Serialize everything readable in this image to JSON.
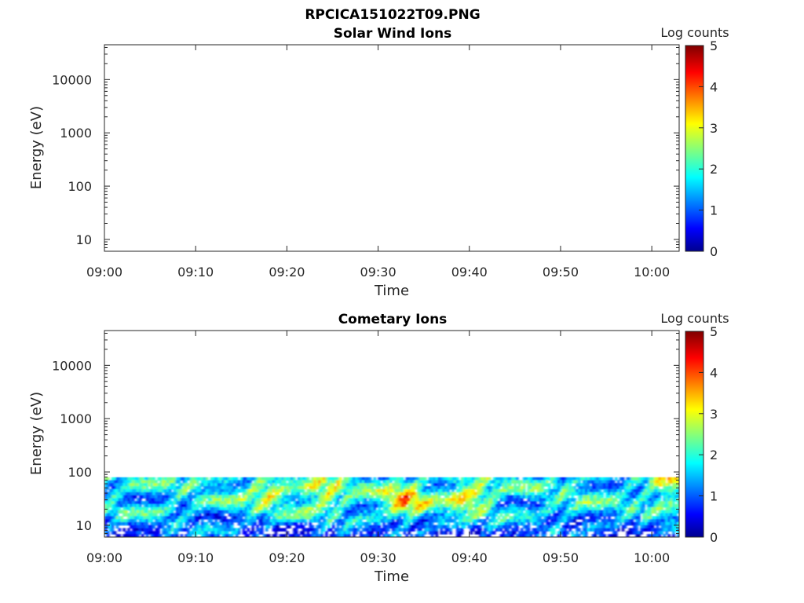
{
  "figure": {
    "title": "RPCICA151022T09.PNG"
  },
  "chart_data": [
    {
      "type": "heatmap",
      "title": "Solar Wind Ions",
      "xlabel": "Time",
      "ylabel": "Energy (eV)",
      "x_ticks": [
        "09:00",
        "09:10",
        "09:20",
        "09:30",
        "09:40",
        "09:50",
        "10:00"
      ],
      "xlim": [
        "09:00",
        "10:03"
      ],
      "y_scale": "log",
      "y_ticks": [
        "10",
        "100",
        "1000",
        "10000"
      ],
      "ylim": [
        6,
        45000
      ],
      "colorbar": {
        "label": "Log counts",
        "ticks": [
          "0",
          "1",
          "2",
          "3",
          "4",
          "5"
        ],
        "range": [
          0,
          5
        ],
        "colormap": "jet"
      },
      "data_region": null,
      "grid": false
    },
    {
      "type": "heatmap",
      "title": "Cometary Ions",
      "xlabel": "Time",
      "ylabel": "Energy (eV)",
      "x_ticks": [
        "09:00",
        "09:10",
        "09:20",
        "09:30",
        "09:40",
        "09:50",
        "10:00"
      ],
      "xlim": [
        "09:00",
        "10:03"
      ],
      "y_scale": "log",
      "y_ticks": [
        "10",
        "100",
        "1000",
        "10000"
      ],
      "ylim": [
        6,
        45000
      ],
      "colorbar": {
        "label": "Log counts",
        "ticks": [
          "0",
          "1",
          "2",
          "3",
          "4",
          "5"
        ],
        "range": [
          0,
          5
        ],
        "colormap": "jet"
      },
      "data_region": {
        "energy_min_eV": 6,
        "energy_max_eV": 80,
        "time_start": "09:00",
        "time_end": "10:03"
      },
      "hotspots": [
        {
          "time": "09:18",
          "energy_eV": 45,
          "log_counts": 3.2
        },
        {
          "time": "09:24",
          "energy_eV": 40,
          "log_counts": 3.4
        },
        {
          "time": "09:33",
          "energy_eV": 30,
          "log_counts": 3.8
        },
        {
          "time": "09:40",
          "energy_eV": 35,
          "log_counts": 3.6
        },
        {
          "time": "10:02",
          "energy_eV": 55,
          "log_counts": 3.0
        }
      ],
      "grid": false
    }
  ]
}
